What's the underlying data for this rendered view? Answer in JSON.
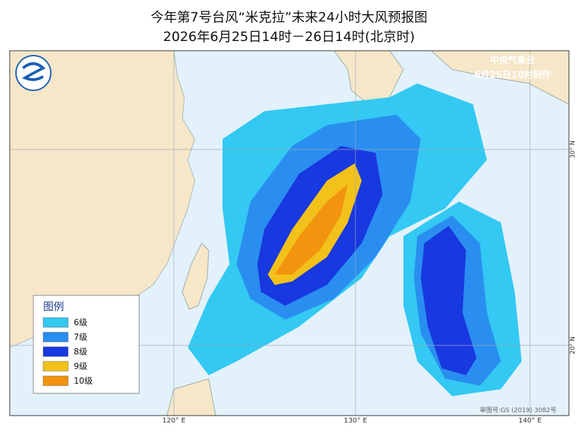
{
  "header": {
    "title": "今年第7号台风“米克拉”未来24小时大风预报图",
    "subtitle": "2026年6月25日14时－26日14时(北京时)"
  },
  "issuer": {
    "name": "中央气象台",
    "time": "6月25日10时制作"
  },
  "legend": {
    "title": "图例",
    "items": [
      {
        "label": "6级",
        "color": "#33c9f2"
      },
      {
        "label": "7级",
        "color": "#2a8ef0"
      },
      {
        "label": "8级",
        "color": "#1838e0"
      },
      {
        "label": "9级",
        "color": "#f2c21a"
      },
      {
        "label": "10级",
        "color": "#f2940f"
      }
    ]
  },
  "axes": {
    "lon_labels": [
      "120° E",
      "130° E",
      "140° E"
    ],
    "lat_labels": [
      "30° N",
      "20° N"
    ]
  },
  "footer": {
    "approval": "审图号:GS (2019) 3082号"
  }
}
